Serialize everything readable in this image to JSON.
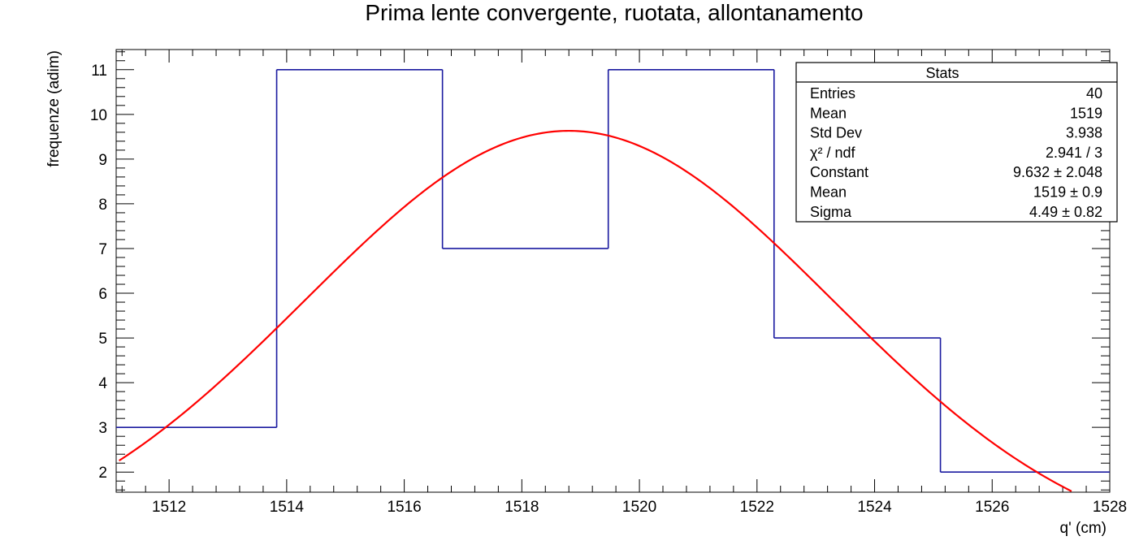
{
  "chart_data": {
    "type": "histogram",
    "title": "Prima lente convergente, ruotata, allontanamento",
    "xlabel": "q' (cm)",
    "ylabel": "frequenze (adim)",
    "xlim": [
      1511.1,
      1528
    ],
    "ylim": [
      1.55,
      11.45
    ],
    "xticks": [
      1512,
      1514,
      1516,
      1518,
      1520,
      1522,
      1524,
      1526,
      1528
    ],
    "yticks": [
      2,
      3,
      4,
      5,
      6,
      7,
      8,
      9,
      10,
      11
    ],
    "bins": [
      {
        "x0": 1511.1,
        "x1": 1513.83,
        "count": 3
      },
      {
        "x0": 1513.83,
        "x1": 1516.65,
        "count": 11
      },
      {
        "x0": 1516.65,
        "x1": 1519.47,
        "count": 7
      },
      {
        "x0": 1519.47,
        "x1": 1522.29,
        "count": 11
      },
      {
        "x0": 1522.29,
        "x1": 1525.12,
        "count": 5
      },
      {
        "x0": 1525.12,
        "x1": 1528.0,
        "count": 2
      }
    ],
    "histogram_color": "#1a1aa0",
    "fit": {
      "type": "gaussian",
      "constant": 9.632,
      "mean": 1518.8,
      "sigma": 4.49,
      "color": "#ff0000"
    },
    "stats": {
      "title": "Stats",
      "rows": [
        {
          "label": "Entries",
          "value": "40"
        },
        {
          "label": "Mean",
          "value": "1519"
        },
        {
          "label": "Std Dev",
          "value": "3.938"
        },
        {
          "label": "χ² / ndf",
          "value": "2.941 / 3"
        },
        {
          "label": "Constant",
          "value": "9.632 ± 2.048"
        },
        {
          "label": "Mean",
          "value": "1519 ± 0.9"
        },
        {
          "label": "Sigma",
          "value": "4.49 ± 0.82"
        }
      ]
    }
  }
}
